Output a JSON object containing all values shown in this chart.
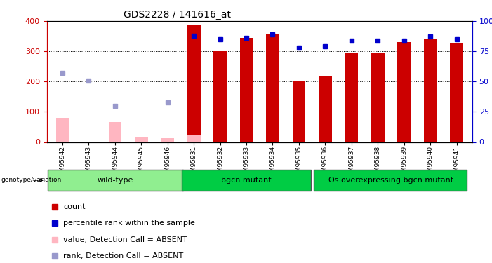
{
  "title": "GDS2228 / 141616_at",
  "samples": [
    "GSM95942",
    "GSM95943",
    "GSM95944",
    "GSM95945",
    "GSM95946",
    "GSM95931",
    "GSM95932",
    "GSM95933",
    "GSM95934",
    "GSM95935",
    "GSM95936",
    "GSM95937",
    "GSM95938",
    "GSM95939",
    "GSM95940",
    "GSM95941"
  ],
  "red_values": [
    null,
    null,
    null,
    null,
    null,
    385,
    300,
    345,
    355,
    200,
    220,
    295,
    295,
    330,
    340,
    325
  ],
  "pink_values": [
    80,
    null,
    65,
    15,
    12,
    25,
    null,
    null,
    null,
    null,
    null,
    null,
    null,
    null,
    null,
    null
  ],
  "blue_values": [
    null,
    null,
    null,
    null,
    null,
    88,
    85,
    86,
    89,
    78,
    79,
    84,
    84,
    84,
    87,
    85
  ],
  "lavender_values": [
    57,
    51,
    30,
    null,
    33,
    null,
    null,
    null,
    null,
    null,
    null,
    null,
    null,
    null,
    null,
    null
  ],
  "groups": [
    {
      "label": "wild-type",
      "start": 0,
      "end": 5,
      "color": "#90EE90"
    },
    {
      "label": "bgcn mutant",
      "start": 5,
      "end": 10,
      "color": "#00CC44"
    },
    {
      "label": "Os overexpressing bgcn mutant",
      "start": 10,
      "end": 16,
      "color": "#00CC44"
    }
  ],
  "ylim": [
    0,
    400
  ],
  "y2lim": [
    0,
    100
  ],
  "yticks": [
    0,
    100,
    200,
    300,
    400
  ],
  "y2ticks": [
    0,
    25,
    50,
    75,
    100
  ],
  "red_bar_color": "#CC0000",
  "pink_bar_color": "#FFB6C1",
  "blue_marker_color": "#0000CC",
  "lavender_marker_color": "#9999CC",
  "ylabel_color": "#CC0000",
  "y2label_color": "#0000CC"
}
